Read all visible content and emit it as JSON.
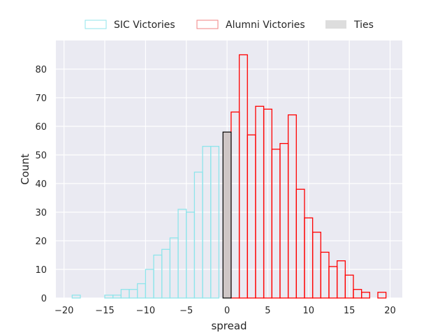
{
  "chart_data": {
    "type": "bar",
    "subtype": "histogram",
    "title": "",
    "xlabel": "spread",
    "ylabel": "Count",
    "xlim": [
      -21.0,
      21.5
    ],
    "ylim": [
      0,
      90
    ],
    "xticks": [
      -20,
      -15,
      -10,
      -5,
      0,
      5,
      10,
      15,
      20
    ],
    "yticks": [
      0,
      10,
      20,
      30,
      40,
      50,
      60,
      70,
      80
    ],
    "grid": true,
    "background": "#eaeaf2",
    "legend_position": "top-center",
    "bin_width": 1,
    "series": [
      {
        "name": "SIC Victories",
        "style": "step",
        "edgecolor": "#8fe5eb",
        "bins": [
          {
            "x0": -19,
            "x1": -18,
            "count": 1
          },
          {
            "x0": -15,
            "x1": -14,
            "count": 1
          },
          {
            "x0": -14,
            "x1": -13,
            "count": 1
          },
          {
            "x0": -13,
            "x1": -12,
            "count": 3
          },
          {
            "x0": -12,
            "x1": -11,
            "count": 3
          },
          {
            "x0": -11,
            "x1": -10,
            "count": 5
          },
          {
            "x0": -10,
            "x1": -9,
            "count": 10
          },
          {
            "x0": -9,
            "x1": -8,
            "count": 15
          },
          {
            "x0": -8,
            "x1": -7,
            "count": 17
          },
          {
            "x0": -7,
            "x1": -6,
            "count": 21
          },
          {
            "x0": -6,
            "x1": -5,
            "count": 31
          },
          {
            "x0": -5,
            "x1": -4,
            "count": 30
          },
          {
            "x0": -4,
            "x1": -3,
            "count": 44
          },
          {
            "x0": -3,
            "x1": -2,
            "count": 53
          },
          {
            "x0": -2,
            "x1": -1,
            "count": 53
          }
        ]
      },
      {
        "name": "Alumni Victories",
        "style": "step",
        "edgecolor": "#ff0000",
        "legend_edgecolor": "#f08080",
        "bins": [
          {
            "x0": 0.5,
            "x1": 1.5,
            "count": 65
          },
          {
            "x0": 1.5,
            "x1": 2.5,
            "count": 85
          },
          {
            "x0": 2.5,
            "x1": 3.5,
            "count": 57
          },
          {
            "x0": 3.5,
            "x1": 4.5,
            "count": 67
          },
          {
            "x0": 4.5,
            "x1": 5.5,
            "count": 66
          },
          {
            "x0": 5.5,
            "x1": 6.5,
            "count": 52
          },
          {
            "x0": 6.5,
            "x1": 7.5,
            "count": 54
          },
          {
            "x0": 7.5,
            "x1": 8.5,
            "count": 64
          },
          {
            "x0": 8.5,
            "x1": 9.5,
            "count": 38
          },
          {
            "x0": 9.5,
            "x1": 10.5,
            "count": 28
          },
          {
            "x0": 10.5,
            "x1": 11.5,
            "count": 23
          },
          {
            "x0": 11.5,
            "x1": 12.5,
            "count": 16
          },
          {
            "x0": 12.5,
            "x1": 13.5,
            "count": 11
          },
          {
            "x0": 13.5,
            "x1": 14.5,
            "count": 13
          },
          {
            "x0": 14.5,
            "x1": 15.5,
            "count": 8
          },
          {
            "x0": 15.5,
            "x1": 16.5,
            "count": 3
          },
          {
            "x0": 16.5,
            "x1": 17.5,
            "count": 2
          },
          {
            "x0": 18.5,
            "x1": 19.5,
            "count": 2
          }
        ]
      },
      {
        "name": "Ties",
        "style": "filled",
        "facecolor": "#cfc6c6",
        "legend_facecolor": "#dddddd",
        "edgecolor": "#000000",
        "bins": [
          {
            "x0": -0.5,
            "x1": 0.5,
            "count": 58
          }
        ]
      }
    ]
  }
}
